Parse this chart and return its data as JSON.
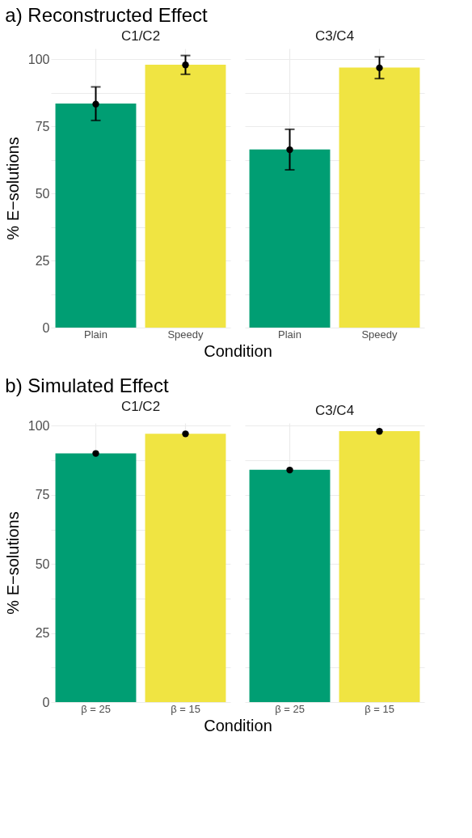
{
  "chart_data": [
    {
      "type": "bar",
      "title": "a) Reconstructed Effect",
      "subtitle": "C1/C2",
      "xlabel": "Condition",
      "ylabel": "% E−solutions",
      "categories": [
        "Plain",
        "Speedy"
      ],
      "ylim": [
        0,
        104
      ],
      "yticks": [
        0,
        {
          "value": 12.5,
          "label": null
        },
        25,
        {
          "value": 37.5,
          "label": null
        },
        50,
        {
          "value": 62.5,
          "label": null
        },
        75,
        {
          "value": 87.5,
          "label": null
        },
        100
      ],
      "grid": true,
      "series": [
        {
          "colors": [
            "#009e73",
            "#f0e442"
          ],
          "values": [
            83.5,
            98.0
          ]
        },
        {
          "type": "scatter",
          "color": "#000000",
          "values": [
            83.3,
            97.9
          ],
          "errors": [
            [
              77.2,
              89.7
            ],
            [
              94.4,
              101.4
            ]
          ]
        }
      ]
    },
    {
      "type": "bar",
      "subtitle": "C3/C4",
      "categories": [
        "Plain",
        "Speedy"
      ],
      "ylim": [
        0,
        104
      ],
      "yticks": [
        0,
        {
          "value": 12.5,
          "label": null
        },
        25,
        {
          "value": 37.5,
          "label": null
        },
        50,
        {
          "value": 62.5,
          "label": null
        },
        75,
        {
          "value": 87.5,
          "label": null
        },
        100
      ],
      "grid": true,
      "tick_labels": "x",
      "series": [
        {
          "colors": [
            "#009e73",
            "#f0e442"
          ],
          "values": [
            66.4,
            96.9
          ]
        },
        {
          "type": "scatter",
          "color": "#000000",
          "values": [
            66.3,
            96.8
          ],
          "errors": [
            [
              58.8,
              73.9
            ],
            [
              92.8,
              100.9
            ]
          ]
        }
      ]
    },
    {
      "type": "bar",
      "title": "b) Simulated Effect",
      "subtitle": "C1/C2",
      "xlabel": "Condition",
      "ylabel": "% E−solutions",
      "categories": [
        "β = 25",
        "β = 15"
      ],
      "ylim": [
        0,
        101
      ],
      "yticks": [
        0,
        {
          "value": 12.5,
          "label": null
        },
        25,
        {
          "value": 37.5,
          "label": null
        },
        50,
        {
          "value": 62.5,
          "label": null
        },
        75,
        {
          "value": 87.5,
          "label": null
        },
        100
      ],
      "grid": true,
      "series": [
        {
          "colors": [
            "#009e73",
            "#f0e442"
          ],
          "values": [
            90.0,
            97.1
          ]
        },
        {
          "type": "scatter",
          "color": "#000000",
          "values": [
            90.0,
            97.1
          ]
        }
      ]
    },
    {
      "type": "bar",
      "subtitle": "C3/C4",
      "categories": [
        "β = 25",
        "β = 15"
      ],
      "ylim": [
        0,
        101
      ],
      "yticks": [
        0,
        {
          "value": 12.5,
          "label": null
        },
        25,
        {
          "value": 37.5,
          "label": null
        },
        50,
        {
          "value": 62.5,
          "label": null
        },
        75,
        {
          "value": 87.5,
          "label": null
        },
        100
      ],
      "grid": true,
      "tick_labels": "x",
      "series": [
        {
          "colors": [
            "#009e73",
            "#f0e442"
          ],
          "values": [
            84.1,
            98.1
          ]
        },
        {
          "type": "scatter",
          "color": "#000000",
          "values": [
            84.0,
            98.0
          ]
        }
      ]
    }
  ]
}
